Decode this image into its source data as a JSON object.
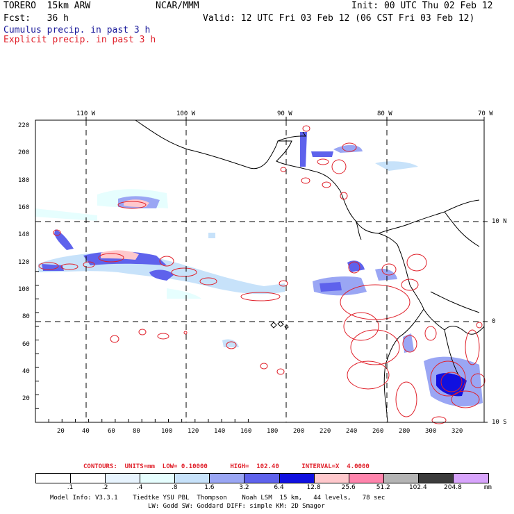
{
  "header": {
    "model": "TORERO  15km ARW",
    "org": "NCAR/MMM",
    "init": "Init: 00 UTC Thu 02 Feb 12",
    "fcst": "Fcst:   36 h",
    "valid": "Valid: 12 UTC Fri 03 Feb 12 (06 CST Fri 03 Feb 12)",
    "legend_cumulus": "Cumulus precip. in past 3 h",
    "legend_explicit": "Explicit precip. in past 3 h"
  },
  "colors": {
    "cumulus_text": "#1a1a9a",
    "explicit_text": "#e0202a",
    "contour": "#e0202a",
    "grid": "#000000"
  },
  "map": {
    "lon_labels": [
      "110 W",
      "100 W",
      "90 W",
      "80 W",
      "70 W"
    ],
    "lat_labels": [
      "10 N",
      "0",
      "10 S"
    ],
    "y_labels": [
      "220",
      "200",
      "180",
      "160",
      "140",
      "120",
      "100",
      "80",
      "60",
      "40",
      "20"
    ],
    "x_labels": [
      "20",
      "40",
      "60",
      "80",
      "100",
      "120",
      "140",
      "160",
      "180",
      "200",
      "220",
      "240",
      "260",
      "280",
      "300",
      "320"
    ]
  },
  "contour_info": {
    "text": "CONTOURS:  UNITS=mm  LOW= 0.10000      HIGH=  102.40      INTERVAL=X  4.0000"
  },
  "colorbar": {
    "labels": [
      ".1",
      ".2",
      ".4",
      ".8",
      "1.6",
      "3.2",
      "6.4",
      "12.8",
      "25.6",
      "51.2",
      "102.4",
      "204.8"
    ],
    "unit": "mm",
    "colors": [
      "#ffffff",
      "#ffffff",
      "#e8f4fe",
      "#e6fefe",
      "#c7e2fa",
      "#9aa6f4",
      "#5e62ec",
      "#1010e0",
      "#ffc8cc",
      "#ff84ac",
      "#b4b4b4",
      "#3c3c3c",
      "#d8a4fc"
    ]
  },
  "footer": {
    "line1": "Model Info: V3.3.1    Tiedtke YSU PBL  Thompson    Noah LSM  15 km,   44 levels,   78 sec",
    "line2": "LW: Godd SW: Goddard DIFF: simple KM: 2D Smagor"
  }
}
